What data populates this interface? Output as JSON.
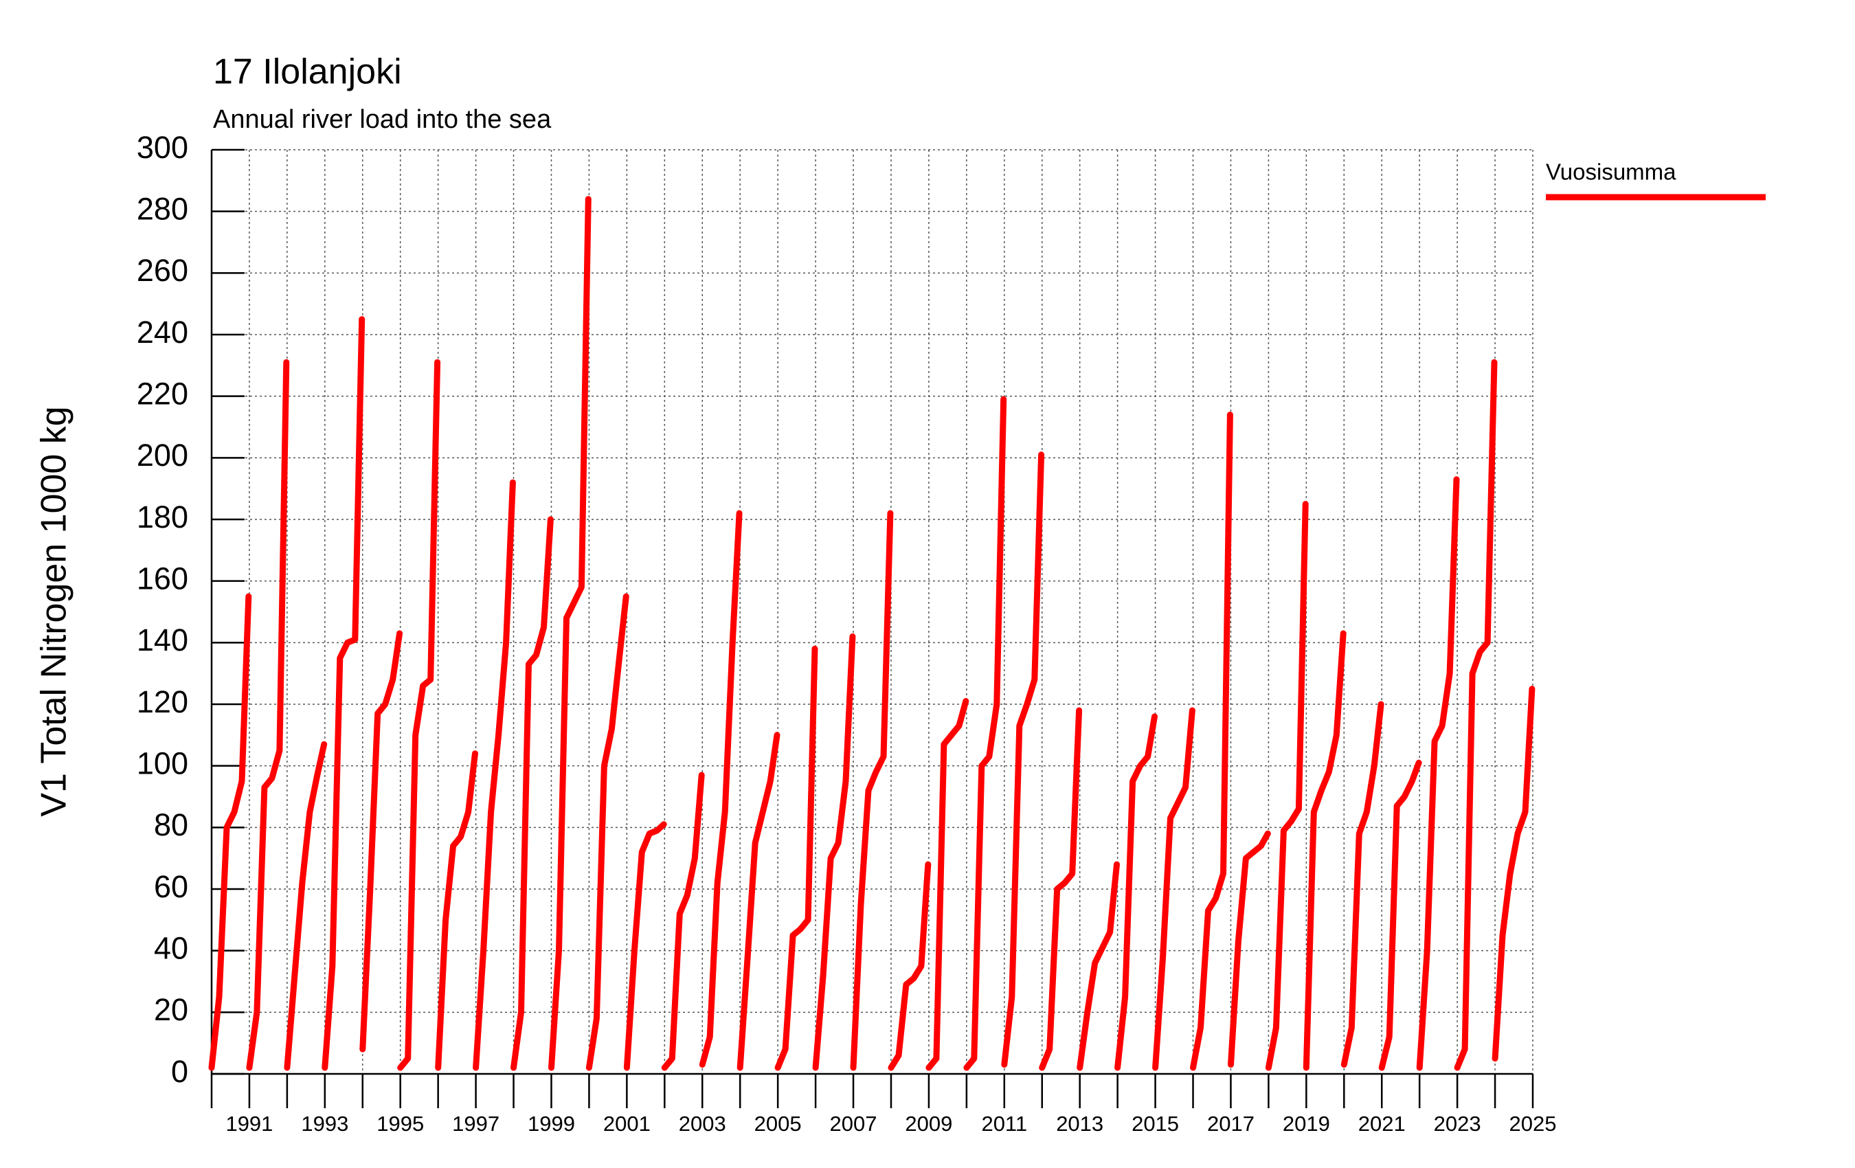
{
  "chart_data": {
    "type": "line",
    "title": "17 Ilolanjoki",
    "subtitle": "Annual river load into the sea",
    "y_label": "V1 Total Nitrogen 1000 kg",
    "ylim": [
      0,
      300
    ],
    "yticks": [
      0,
      20,
      40,
      60,
      80,
      100,
      120,
      140,
      160,
      180,
      200,
      220,
      240,
      260,
      280,
      300
    ],
    "xlim": [
      1990,
      2025
    ],
    "xticks": [
      1991,
      1993,
      1995,
      1997,
      1999,
      2001,
      2003,
      2005,
      2007,
      2009,
      2011,
      2013,
      2015,
      2017,
      2019,
      2021,
      2023,
      2025
    ],
    "xminor_ticks": [
      1990,
      1992,
      1994,
      1996,
      1998,
      2000,
      2002,
      2004,
      2006,
      2008,
      2010,
      2012,
      2014,
      2016,
      2018,
      2020,
      2022,
      2024
    ],
    "grid": true,
    "legend": "right",
    "x": [
      1990,
      1990.2,
      1990.4,
      1990.6,
      1990.8,
      1990.98,
      1990.99,
      1991,
      1991.2,
      1991.4,
      1991.6,
      1991.8,
      1991.98,
      1991.99,
      1992,
      1992.2,
      1992.4,
      1992.6,
      1992.8,
      1992.98,
      1992.99,
      1993,
      1993.2,
      1993.4,
      1993.6,
      1993.8,
      1993.98,
      1993.99,
      1994,
      1994.2,
      1994.4,
      1994.6,
      1994.8,
      1994.98,
      1994.99,
      1995,
      1995.2,
      1995.4,
      1995.6,
      1995.8,
      1995.98,
      1995.99,
      1996,
      1996.2,
      1996.4,
      1996.6,
      1996.8,
      1996.98,
      1996.99,
      1997,
      1997.2,
      1997.4,
      1997.6,
      1997.8,
      1997.98,
      1997.99,
      1998,
      1998.2,
      1998.4,
      1998.6,
      1998.8,
      1998.98,
      1998.99,
      1999,
      1999.2,
      1999.4,
      1999.6,
      1999.8,
      1999.98,
      1999.99,
      2000,
      2000.2,
      2000.4,
      2000.6,
      2000.8,
      2000.98,
      2000.99,
      2001,
      2001.2,
      2001.4,
      2001.6,
      2001.8,
      2001.98,
      2001.99,
      2002,
      2002.2,
      2002.4,
      2002.6,
      2002.8,
      2002.98,
      2002.99,
      2003,
      2003.2,
      2003.4,
      2003.6,
      2003.8,
      2003.98,
      2003.99,
      2004,
      2004.2,
      2004.4,
      2004.6,
      2004.8,
      2004.98,
      2004.99,
      2005,
      2005.2,
      2005.4,
      2005.6,
      2005.8,
      2005.98,
      2005.99,
      2006,
      2006.2,
      2006.4,
      2006.6,
      2006.8,
      2006.98,
      2006.99,
      2007,
      2007.2,
      2007.4,
      2007.6,
      2007.8,
      2007.98,
      2007.99,
      2008,
      2008.2,
      2008.4,
      2008.6,
      2008.8,
      2008.98,
      2008.99,
      2009,
      2009.2,
      2009.4,
      2009.6,
      2009.8,
      2009.98,
      2009.99,
      2010,
      2010.2,
      2010.4,
      2010.6,
      2010.8,
      2010.98,
      2010.99,
      2011,
      2011.2,
      2011.4,
      2011.6,
      2011.8,
      2011.98,
      2011.99,
      2012,
      2012.2,
      2012.4,
      2012.6,
      2012.8,
      2012.98,
      2012.99,
      2013,
      2013.2,
      2013.4,
      2013.6,
      2013.8,
      2013.98,
      2013.99,
      2014,
      2014.2,
      2014.4,
      2014.6,
      2014.8,
      2014.98,
      2014.99,
      2015,
      2015.2,
      2015.4,
      2015.6,
      2015.8,
      2015.98,
      2015.99,
      2016,
      2016.2,
      2016.4,
      2016.6,
      2016.8,
      2016.98,
      2016.99,
      2017,
      2017.2,
      2017.4,
      2017.6,
      2017.8,
      2017.98,
      2017.99,
      2018,
      2018.2,
      2018.4,
      2018.6,
      2018.8,
      2018.98,
      2018.99,
      2019,
      2019.2,
      2019.4,
      2019.6,
      2019.8,
      2019.98,
      2019.99,
      2020,
      2020.2,
      2020.4,
      2020.6,
      2020.8,
      2020.98,
      2020.99,
      2021,
      2021.2,
      2021.4,
      2021.6,
      2021.8,
      2021.98,
      2021.99,
      2022,
      2022.2,
      2022.4,
      2022.6,
      2022.8,
      2022.98,
      2022.99,
      2023,
      2023.2,
      2023.4,
      2023.6,
      2023.8,
      2023.98,
      2023.99,
      2024,
      2024.2,
      2024.4,
      2024.6,
      2024.8,
      2024.98
    ],
    "series": [
      {
        "name": "Vuosisumma",
        "color": "#ff0000",
        "values": [
          2,
          25,
          80,
          85,
          95,
          155,
          null,
          2,
          20,
          93,
          96,
          105,
          231,
          null,
          2,
          32,
          62,
          85,
          97,
          107,
          null,
          2,
          35,
          135,
          140,
          141,
          245,
          null,
          8,
          60,
          117,
          120,
          128,
          143,
          null,
          2,
          5,
          110,
          126,
          128,
          231,
          null,
          2,
          50,
          74,
          77,
          85,
          104,
          null,
          2,
          40,
          85,
          110,
          140,
          192,
          null,
          2,
          20,
          133,
          136,
          145,
          180,
          null,
          2,
          40,
          148,
          153,
          158,
          284,
          null,
          2,
          18,
          100,
          112,
          135,
          155,
          null,
          2,
          40,
          72,
          78,
          79,
          81,
          null,
          2,
          5,
          52,
          58,
          70,
          97,
          null,
          3,
          12,
          62,
          85,
          140,
          182,
          null,
          2,
          38,
          75,
          85,
          95,
          110,
          null,
          2,
          8,
          45,
          47,
          50,
          138,
          null,
          2,
          32,
          70,
          75,
          95,
          142,
          null,
          2,
          55,
          92,
          98,
          103,
          182,
          null,
          2,
          6,
          29,
          31,
          35,
          68,
          null,
          2,
          5,
          107,
          110,
          113,
          121,
          null,
          2,
          5,
          100,
          103,
          120,
          219,
          null,
          3,
          25,
          113,
          120,
          128,
          201,
          null,
          2,
          8,
          60,
          62,
          65,
          118,
          null,
          2,
          20,
          36,
          41,
          46,
          68,
          null,
          2,
          25,
          95,
          100,
          103,
          116,
          null,
          2,
          38,
          83,
          88,
          93,
          118,
          null,
          2,
          15,
          53,
          57,
          65,
          214,
          null,
          3,
          43,
          70,
          72,
          74,
          78,
          null,
          2,
          15,
          79,
          82,
          86,
          185,
          null,
          2,
          85,
          92,
          98,
          110,
          143,
          null,
          3,
          15,
          78,
          85,
          100,
          120,
          null,
          2,
          12,
          87,
          90,
          95,
          101,
          null,
          2,
          40,
          108,
          113,
          130,
          193,
          null,
          2,
          8,
          130,
          137,
          140,
          231,
          null,
          5,
          45,
          65,
          78,
          85,
          125
        ]
      }
    ]
  }
}
